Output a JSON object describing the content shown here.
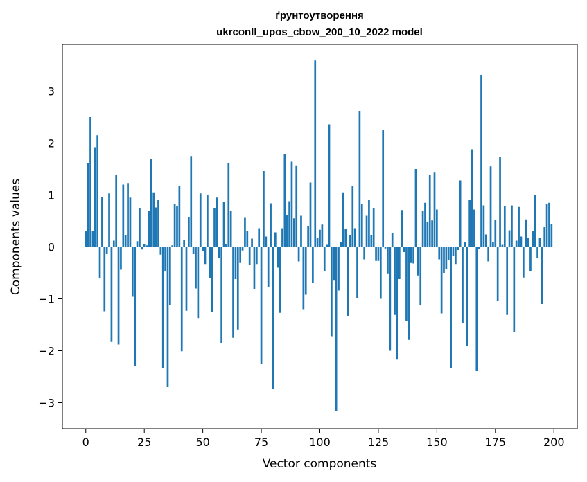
{
  "chart_data": {
    "type": "bar",
    "title": "ґрунтоутворення",
    "subtitle": "ukrconll_upos_cbow_200_10_2022 model",
    "xlabel": "Vector components",
    "ylabel": "Components values",
    "xlim": [
      -10,
      210
    ],
    "ylim": [
      -3.5,
      3.9
    ],
    "xticks": [
      0,
      25,
      50,
      75,
      100,
      125,
      150,
      175,
      200
    ],
    "xtick_labels": [
      "0",
      "25",
      "50",
      "75",
      "100",
      "125",
      "150",
      "175",
      "200"
    ],
    "yticks": [
      -3,
      -2,
      -1,
      0,
      1,
      2,
      3
    ],
    "ytick_labels": [
      "−3",
      "−2",
      "−1",
      "0",
      "1",
      "2",
      "3"
    ],
    "grid": false,
    "bar_color": "#1f77b4",
    "x": [
      0,
      1,
      2,
      3,
      4,
      5,
      6,
      7,
      8,
      9,
      10,
      11,
      12,
      13,
      14,
      15,
      16,
      17,
      18,
      19,
      20,
      21,
      22,
      23,
      24,
      25,
      26,
      27,
      28,
      29,
      30,
      31,
      32,
      33,
      34,
      35,
      36,
      37,
      38,
      39,
      40,
      41,
      42,
      43,
      44,
      45,
      46,
      47,
      48,
      49,
      50,
      51,
      52,
      53,
      54,
      55,
      56,
      57,
      58,
      59,
      60,
      61,
      62,
      63,
      64,
      65,
      66,
      67,
      68,
      69,
      70,
      71,
      72,
      73,
      74,
      75,
      76,
      77,
      78,
      79,
      80,
      81,
      82,
      83,
      84,
      85,
      86,
      87,
      88,
      89,
      90,
      91,
      92,
      93,
      94,
      95,
      96,
      97,
      98,
      99,
      100,
      101,
      102,
      103,
      104,
      105,
      106,
      107,
      108,
      109,
      110,
      111,
      112,
      113,
      114,
      115,
      116,
      117,
      118,
      119,
      120,
      121,
      122,
      123,
      124,
      125,
      126,
      127,
      128,
      129,
      130,
      131,
      132,
      133,
      134,
      135,
      136,
      137,
      138,
      139,
      140,
      141,
      142,
      143,
      144,
      145,
      146,
      147,
      148,
      149,
      150,
      151,
      152,
      153,
      154,
      155,
      156,
      157,
      158,
      159,
      160,
      161,
      162,
      163,
      164,
      165,
      166,
      167,
      168,
      169,
      170,
      171,
      172,
      173,
      174,
      175,
      176,
      177,
      178,
      179,
      180,
      181,
      182,
      183,
      184,
      185,
      186,
      187,
      188,
      189,
      190,
      191,
      192,
      193,
      194,
      195,
      196,
      197,
      198,
      199
    ],
    "values": [
      0.3,
      1.62,
      2.5,
      0.3,
      1.92,
      2.15,
      -0.6,
      0.96,
      -1.24,
      -0.14,
      1.03,
      -1.83,
      0.12,
      1.38,
      -1.88,
      -0.44,
      1.2,
      0.22,
      1.23,
      0.95,
      -0.96,
      -2.29,
      0.11,
      0.74,
      -0.05,
      0.05,
      0.03,
      0.7,
      1.7,
      1.05,
      0.76,
      0.9,
      -0.15,
      -2.34,
      -0.47,
      -2.7,
      -1.12,
      0.03,
      0.82,
      0.78,
      1.17,
      -2.01,
      0.13,
      -1.23,
      0.58,
      1.75,
      -0.14,
      -0.8,
      -1.37,
      1.03,
      -0.08,
      -0.33,
      1.0,
      -0.6,
      -1.26,
      0.75,
      0.95,
      -0.22,
      -1.86,
      0.86,
      0.05,
      1.62,
      0.7,
      -1.75,
      -0.62,
      -1.59,
      -0.31,
      -0.07,
      0.56,
      0.3,
      -0.34,
      0.16,
      -0.82,
      -0.33,
      0.36,
      -2.26,
      1.46,
      0.2,
      -0.78,
      0.84,
      -2.73,
      0.28,
      -0.4,
      -1.27,
      0.36,
      1.78,
      0.62,
      0.88,
      1.64,
      0.55,
      1.57,
      -0.28,
      0.6,
      -1.2,
      -0.92,
      0.4,
      1.24,
      -0.69,
      3.59,
      0.17,
      0.33,
      0.43,
      -0.46,
      0.04,
      2.36,
      -1.72,
      -0.65,
      -3.16,
      -0.84,
      0.1,
      1.05,
      0.34,
      -1.34,
      0.22,
      1.18,
      0.36,
      -0.99,
      2.61,
      0.82,
      -0.24,
      0.6,
      0.9,
      0.23,
      0.75,
      -0.27,
      -0.27,
      -1.0,
      2.26,
      -0.03,
      -0.51,
      -2.0,
      0.27,
      -1.31,
      -2.17,
      -0.62,
      0.71,
      -0.1,
      -1.43,
      -1.79,
      -0.31,
      -0.32,
      1.5,
      -0.55,
      -1.12,
      0.7,
      0.85,
      0.48,
      1.38,
      0.51,
      1.43,
      0.72,
      -0.24,
      -1.28,
      -0.5,
      -0.42,
      -0.25,
      -2.33,
      -0.18,
      -0.33,
      -0.06,
      1.28,
      -1.47,
      0.1,
      -1.9,
      0.9,
      1.88,
      0.72,
      -2.38,
      -0.04,
      3.31,
      0.8,
      0.24,
      -0.28,
      1.55,
      0.1,
      0.52,
      -1.04,
      1.74,
      0.04,
      0.79,
      -1.31,
      0.32,
      0.8,
      -1.64,
      0.12,
      0.77,
      0.2,
      -0.59,
      0.53,
      0.18,
      -0.46,
      0.3,
      1.0,
      -0.22,
      0.18,
      -1.1,
      0.38,
      0.82,
      0.85,
      0.44
    ]
  }
}
